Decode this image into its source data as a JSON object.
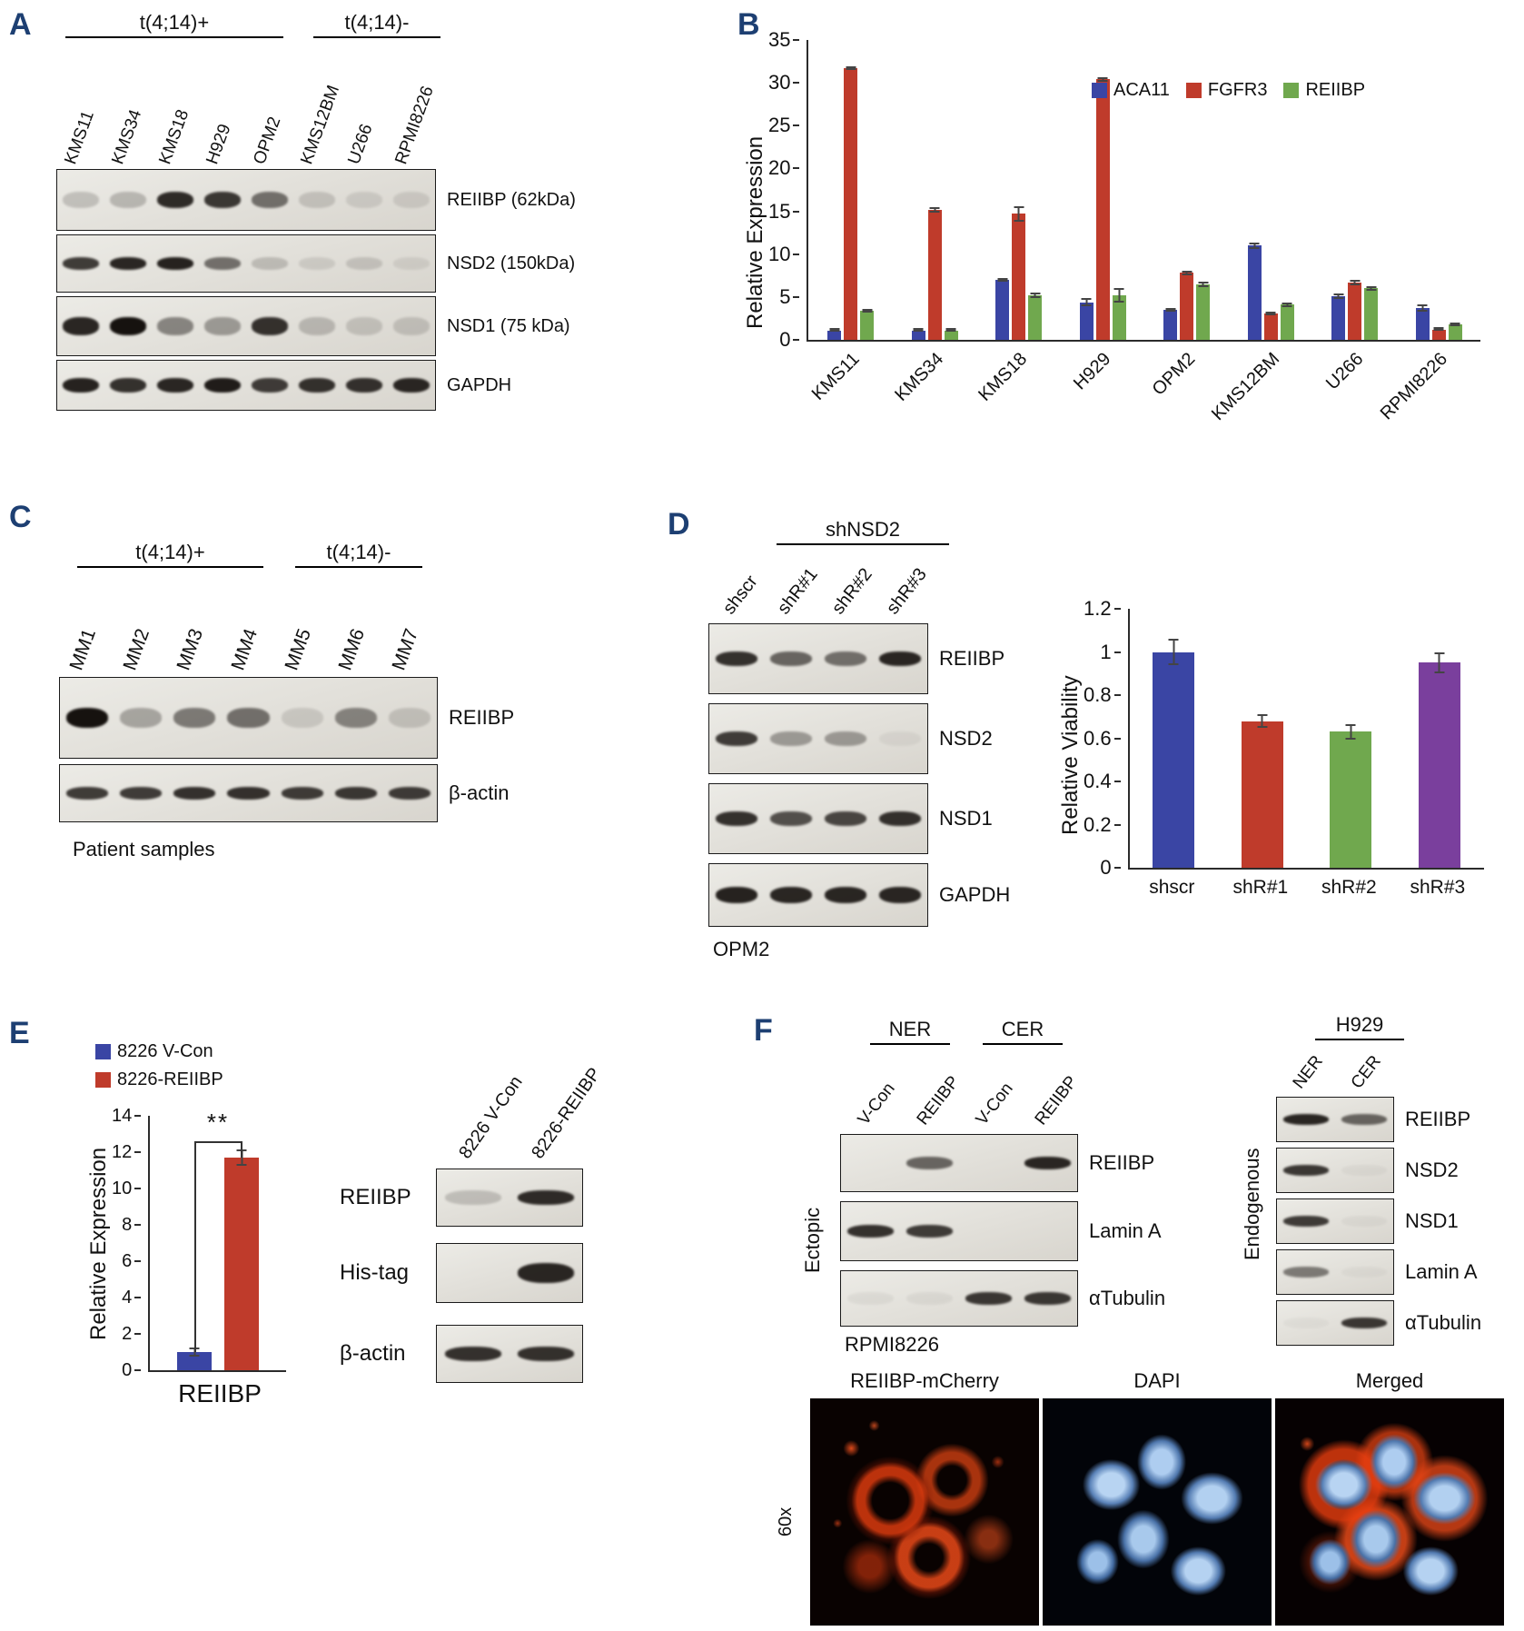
{
  "figure": {
    "panel_label_color": "#1d3f72"
  },
  "panels": {
    "A": {
      "label": "A",
      "group_pos": "t(4;14)+",
      "group_neg": "t(4;14)-",
      "lanes": [
        "KMS11",
        "KMS34",
        "KMS18",
        "H929",
        "OPM2",
        "KMS12BM",
        "U266",
        "RPMI8226"
      ],
      "rows": [
        "REIIBP (62kDa)",
        "NSD2 (150kDa)",
        "NSD1 (75 kDa)",
        "GAPDH"
      ],
      "bands": [
        [
          0.18,
          0.22,
          0.88,
          0.82,
          0.55,
          0.15,
          0.1,
          0.1
        ],
        [
          0.8,
          0.9,
          0.92,
          0.55,
          0.18,
          0.1,
          0.14,
          0.08
        ],
        [
          0.9,
          1.0,
          0.45,
          0.35,
          0.85,
          0.2,
          0.15,
          0.15
        ],
        [
          0.92,
          0.85,
          0.9,
          0.95,
          0.8,
          0.85,
          0.85,
          0.9
        ]
      ]
    },
    "B": {
      "label": "B"
    },
    "C": {
      "label": "C",
      "group_pos": "t(4;14)+",
      "group_neg": "t(4;14)-",
      "lanes": [
        "MM1",
        "MM2",
        "MM3",
        "MM4",
        "MM5",
        "MM6",
        "MM7"
      ],
      "rows": [
        "REIIBP",
        "β-actin"
      ],
      "bands": [
        [
          1.0,
          0.3,
          0.5,
          0.55,
          0.12,
          0.45,
          0.15
        ],
        [
          0.8,
          0.8,
          0.85,
          0.85,
          0.8,
          0.82,
          0.8
        ]
      ],
      "caption": "Patient samples"
    },
    "D": {
      "label": "D",
      "group": "shNSD2",
      "lanes": [
        "shscr",
        "shR#1",
        "shR#2",
        "shR#3"
      ],
      "rows": [
        "REIIBP",
        "NSD2",
        "NSD1",
        "GAPDH"
      ],
      "bands": [
        [
          0.85,
          0.6,
          0.55,
          0.9
        ],
        [
          0.8,
          0.35,
          0.35,
          0.05
        ],
        [
          0.85,
          0.7,
          0.75,
          0.85
        ],
        [
          0.92,
          0.9,
          0.9,
          0.9
        ]
      ],
      "cell_line": "OPM2"
    },
    "E": {
      "label": "E",
      "lanes": [
        "8226 V-Con",
        "8226-REIIBP"
      ],
      "rows": [
        "REIIBP",
        "His-tag",
        "β-actin"
      ],
      "bands": [
        [
          0.18,
          0.88
        ],
        [
          0.0,
          0.9
        ],
        [
          0.85,
          0.85
        ]
      ]
    },
    "F": {
      "label": "F",
      "left": {
        "groups": [
          "NER",
          "CER"
        ],
        "lanes": [
          "V-Con",
          "REIIBP",
          "V-Con",
          "REIIBP"
        ],
        "rows": [
          "REIIBP",
          "Lamin A",
          "αTubulin"
        ],
        "bands": [
          [
            0.02,
            0.6,
            0.02,
            0.9
          ],
          [
            0.85,
            0.8,
            0.02,
            0.02
          ],
          [
            0.05,
            0.05,
            0.82,
            0.82
          ]
        ],
        "side_label": "Ectopic",
        "cell_line": "RPMI8226"
      },
      "right": {
        "header": "H929",
        "lanes": [
          "NER",
          "CER"
        ],
        "rows": [
          "REIIBP",
          "NSD2",
          "NSD1",
          "Lamin A",
          "αTubulin"
        ],
        "bands": [
          [
            0.9,
            0.6
          ],
          [
            0.82,
            0.04
          ],
          [
            0.8,
            0.04
          ],
          [
            0.5,
            0.03
          ],
          [
            0.03,
            0.82
          ]
        ],
        "side_label": "Endogenous"
      },
      "microscopy": {
        "labels": [
          "REIIBP-mCherry",
          "DAPI",
          "Merged"
        ],
        "magnification": "60x"
      }
    }
  },
  "chart_data": [
    {
      "id": "panelB",
      "type": "bar",
      "ylabel": "Relative Expression",
      "ylim": [
        0,
        35
      ],
      "yticks": [
        0,
        5,
        10,
        15,
        20,
        25,
        30,
        35
      ],
      "categories": [
        "KMS11",
        "KMS34",
        "KMS18",
        "H929",
        "OPM2",
        "KMS12BM",
        "U266",
        "RPMI8226"
      ],
      "series": [
        {
          "name": "ACA11",
          "color": "#3a45a4",
          "values": [
            1.1,
            1.1,
            7.0,
            4.4,
            3.5,
            11.0,
            5.1,
            3.7
          ],
          "errors": [
            0.15,
            0.15,
            0.25,
            0.5,
            0.2,
            0.35,
            0.3,
            0.45
          ]
        },
        {
          "name": "FGFR3",
          "color": "#bf3b2b",
          "values": [
            31.7,
            15.2,
            14.7,
            30.4,
            7.8,
            3.1,
            6.7,
            1.2
          ],
          "errors": [
            0.25,
            0.3,
            0.9,
            0.3,
            0.25,
            0.2,
            0.3,
            0.15
          ]
        },
        {
          "name": "REIIBP",
          "color": "#70a84e",
          "values": [
            3.4,
            1.1,
            5.2,
            5.2,
            6.5,
            4.1,
            6.0,
            1.8
          ],
          "errors": [
            0.2,
            0.15,
            0.3,
            0.8,
            0.3,
            0.25,
            0.3,
            0.2
          ]
        }
      ],
      "legend_position": "top-right",
      "grid": false
    },
    {
      "id": "panelD",
      "type": "bar",
      "ylabel": "Relative Viability",
      "ylim": [
        0,
        1.2
      ],
      "yticks": [
        0,
        0.2,
        0.4,
        0.6,
        0.8,
        1,
        1.2
      ],
      "categories": [
        "shscr",
        "shR#1",
        "shR#2",
        "shR#3"
      ],
      "values": [
        1.0,
        0.68,
        0.63,
        0.95
      ],
      "errors": [
        0.06,
        0.03,
        0.035,
        0.05
      ],
      "colors": [
        "#3a45a4",
        "#bf3b2b",
        "#70a84e",
        "#7a3f9d"
      ],
      "grid": false
    },
    {
      "id": "panelE",
      "type": "bar",
      "ylabel": "Relative Expression",
      "xlabel": "REIIBP",
      "ylim": [
        0,
        14
      ],
      "yticks": [
        0,
        2,
        4,
        6,
        8,
        10,
        12,
        14
      ],
      "categories": [
        "8226 V-Con",
        "8226-REIIBP"
      ],
      "values": [
        1.0,
        11.7
      ],
      "errors": [
        0.25,
        0.45
      ],
      "colors": [
        "#3a45a4",
        "#bf3b2b"
      ],
      "significance": "**",
      "grid": false
    }
  ]
}
